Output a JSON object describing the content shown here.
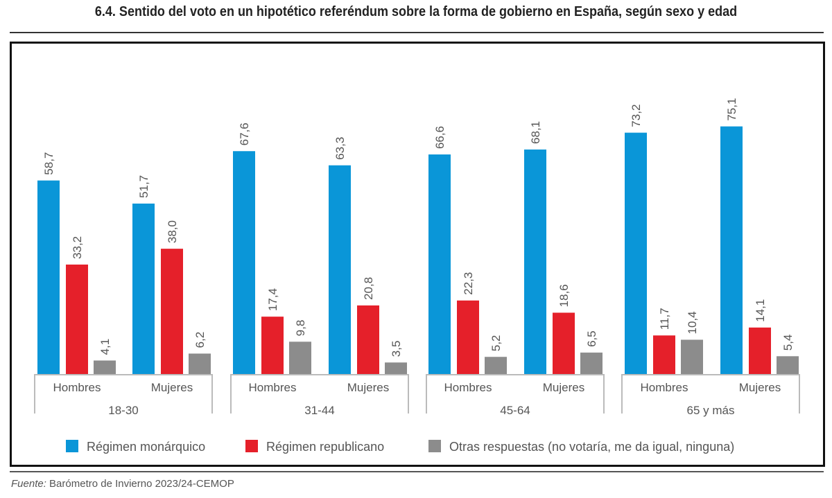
{
  "chart_data": {
    "type": "bar",
    "title": "6.4. Sentido del voto en un hipotético referéndum sobre la forma de gobierno en España, según sexo y edad",
    "groups": [
      "18-30",
      "31-44",
      "45-64",
      "65 y más"
    ],
    "subgroups": [
      "Hombres",
      "Mujeres"
    ],
    "categories": [
      "18-30 Hombres",
      "18-30 Mujeres",
      "31-44 Hombres",
      "31-44 Mujeres",
      "45-64 Hombres",
      "45-64 Mujeres",
      "65 y más Hombres",
      "65 y más Mujeres"
    ],
    "series": [
      {
        "name": "Régimen monárquico",
        "color": "#0a96d8",
        "values": [
          58.7,
          51.7,
          67.6,
          63.3,
          66.6,
          68.1,
          73.2,
          75.1
        ],
        "labels": [
          "58,7",
          "51,7",
          "67,6",
          "63,3",
          "66,6",
          "68,1",
          "73,2",
          "75,1"
        ]
      },
      {
        "name": "Régimen republicano",
        "color": "#e5202a",
        "values": [
          33.2,
          38.0,
          17.4,
          20.8,
          22.3,
          18.6,
          11.7,
          14.1
        ],
        "labels": [
          "33,2",
          "38,0",
          "17,4",
          "20,8",
          "22,3",
          "18,6",
          "11,7",
          "14,1"
        ]
      },
      {
        "name": "Otras respuestas (no votaría, me da igual, ninguna)",
        "color": "#8c8c8c",
        "values": [
          4.1,
          6.2,
          9.8,
          3.5,
          5.2,
          6.5,
          10.4,
          5.4
        ],
        "labels": [
          "4,1",
          "6,2",
          "9,8",
          "3,5",
          "5,2",
          "6,5",
          "10,4",
          "5,4"
        ]
      }
    ],
    "ylim": [
      0,
      80
    ],
    "grid": false,
    "legend": "bottom"
  },
  "footer": {
    "source_label": "Fuente:",
    "source_text": " Barómetro de Invierno 2023/24-CEMOP"
  }
}
